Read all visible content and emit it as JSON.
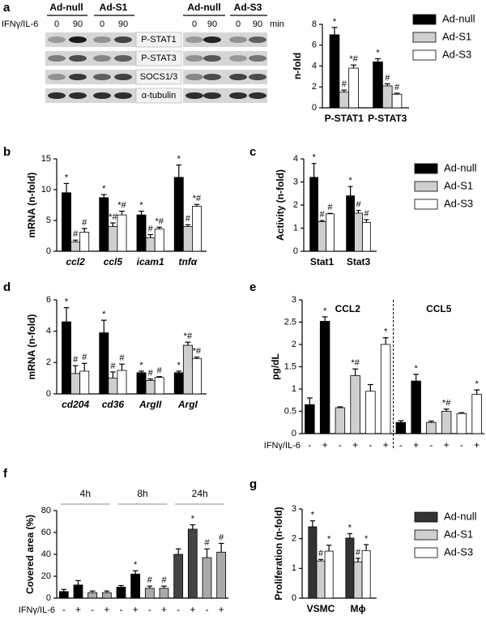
{
  "panel_labels": [
    "a",
    "b",
    "c",
    "d",
    "e",
    "f",
    "g"
  ],
  "blot": {
    "groups_left": [
      "Ad-null",
      "Ad-S1"
    ],
    "groups_right": [
      "Ad-null",
      "Ad-S3"
    ],
    "treatment": "IFNγ/IL-6",
    "time_labels_left": [
      "0",
      "90",
      "0",
      "90"
    ],
    "time_labels_right": [
      "0",
      "90",
      "0",
      "90"
    ],
    "unit": "min",
    "rows": [
      "P-STAT1",
      "P-STAT3",
      "SOCS1/3",
      "α-tubulin"
    ]
  },
  "chart_data": [
    {
      "type": "bar",
      "y_label": "n-fold",
      "categories": [
        "P-STAT1",
        "P-STAT3"
      ],
      "ylim": [
        0,
        8
      ],
      "yticks": [
        0,
        2,
        4,
        6,
        8
      ],
      "series": [
        {
          "name": "Ad-null",
          "color": "#000000",
          "values": [
            7.0,
            4.4
          ],
          "errors": [
            0.7,
            0.3
          ],
          "annotations": [
            "*",
            "*"
          ]
        },
        {
          "name": "Ad-S1",
          "color": "#cfcfcf",
          "values": [
            1.5,
            2.1
          ],
          "errors": [
            0.2,
            0.2
          ],
          "annotations": [
            "#",
            "#"
          ]
        },
        {
          "name": "Ad-S3",
          "color": "#ffffff",
          "values": [
            3.8,
            1.3
          ],
          "errors": [
            0.3,
            0.1
          ],
          "annotations": [
            "*#",
            "#"
          ]
        }
      ]
    },
    {
      "type": "bar",
      "y_label": "mRNA (n-fold)",
      "categories": [
        "ccl2",
        "ccl5",
        "icam1",
        "tnfα"
      ],
      "ylim": [
        0,
        15
      ],
      "yticks": [
        0,
        5,
        10,
        15
      ],
      "series": [
        {
          "name": "Ad-null",
          "color": "#000000",
          "values": [
            9.5,
            8.7,
            5.9,
            12.0
          ],
          "errors": [
            1.5,
            0.5,
            0.6,
            2.0
          ],
          "annotations": [
            "*",
            "*",
            "*",
            "*"
          ]
        },
        {
          "name": "Ad-S1",
          "color": "#cfcfcf",
          "values": [
            1.5,
            4.0,
            2.2,
            4.0
          ],
          "errors": [
            0.3,
            0.6,
            0.5,
            0.3
          ],
          "annotations": [
            "#",
            "*#",
            "#",
            "#"
          ]
        },
        {
          "name": "Ad-S3",
          "color": "#ffffff",
          "values": [
            3.1,
            5.9,
            3.6,
            7.3
          ],
          "errors": [
            0.6,
            0.6,
            0.3,
            0.3
          ],
          "annotations": [
            "#",
            "*#",
            "*#",
            "*#"
          ]
        }
      ]
    },
    {
      "type": "bar",
      "y_label": "Activity (n-fold)",
      "categories": [
        "Stat1",
        "Stat3"
      ],
      "ylim": [
        0,
        4
      ],
      "yticks": [
        0,
        1,
        2,
        3,
        4
      ],
      "series": [
        {
          "name": "Ad-null",
          "color": "#000000",
          "values": [
            3.2,
            2.4
          ],
          "errors": [
            0.6,
            0.4
          ],
          "annotations": [
            "*",
            "*"
          ]
        },
        {
          "name": "Ad-S1",
          "color": "#cfcfcf",
          "values": [
            1.28,
            1.65
          ],
          "errors": [
            0.05,
            0.12
          ],
          "annotations": [
            "#",
            "#"
          ]
        },
        {
          "name": "Ad-S3",
          "color": "#ffffff",
          "values": [
            1.62,
            1.25
          ],
          "errors": [
            0.02,
            0.12
          ],
          "annotations": [
            "#",
            "#"
          ]
        }
      ]
    },
    {
      "type": "bar",
      "y_label": "mRNA (n-fold)",
      "categories": [
        "cd204",
        "cd36",
        "ArgII",
        "ArgI"
      ],
      "ylim": [
        0,
        6
      ],
      "yticks": [
        0,
        2,
        4,
        6
      ],
      "series": [
        {
          "name": "Ad-null",
          "color": "#000000",
          "values": [
            4.6,
            3.9,
            1.35,
            1.35
          ],
          "errors": [
            0.9,
            0.8,
            0.1,
            0.1
          ],
          "annotations": [
            "*",
            "*",
            "*",
            "*"
          ]
        },
        {
          "name": "Ad-S1",
          "color": "#cfcfcf",
          "values": [
            1.3,
            1.0,
            0.85,
            3.1
          ],
          "errors": [
            0.5,
            0.4,
            0.1,
            0.2
          ],
          "annotations": [
            "#",
            "#",
            "#",
            "*#"
          ]
        },
        {
          "name": "Ad-S3",
          "color": "#ffffff",
          "values": [
            1.45,
            1.5,
            1.05,
            2.25
          ],
          "errors": [
            0.5,
            0.4,
            0.05,
            0.1
          ],
          "annotations": [
            "#",
            "#",
            "#",
            "*#"
          ]
        }
      ]
    },
    {
      "type": "bar",
      "y_label": "pg/dL",
      "x_row_label": "IFNγ/IL-6",
      "group_labels": [
        "CCL2",
        "CCL5"
      ],
      "categories": [
        "-",
        "+",
        "-",
        "+",
        "-",
        "+",
        "-",
        "+",
        "-",
        "+",
        "-",
        "+"
      ],
      "values": [
        0.65,
        2.52,
        0.58,
        1.3,
        0.95,
        2.0,
        0.25,
        1.18,
        0.25,
        0.5,
        0.45,
        0.88
      ],
      "errors": [
        0.15,
        0.1,
        0.02,
        0.15,
        0.15,
        0.15,
        0.04,
        0.15,
        0.03,
        0.05,
        0.02,
        0.1
      ],
      "colors": [
        "#000000",
        "#000000",
        "#cfcfcf",
        "#cfcfcf",
        "#ffffff",
        "#ffffff",
        "#000000",
        "#000000",
        "#cfcfcf",
        "#cfcfcf",
        "#ffffff",
        "#ffffff"
      ],
      "annotations": [
        null,
        "*",
        null,
        "*#",
        null,
        "*",
        null,
        "*",
        null,
        "*#",
        null,
        "*"
      ],
      "ylim": [
        0,
        3
      ],
      "yticks": [
        0,
        0.5,
        1,
        1.5,
        2,
        2.5,
        3
      ]
    },
    {
      "type": "bar",
      "y_label": "Covered area (%)",
      "x_row_label": "IFNγ/IL-6",
      "group_labels": [
        "4h",
        "8h",
        "24h"
      ],
      "categories": [
        "-",
        "+",
        "-",
        "+",
        "-",
        "+",
        "-",
        "+",
        "-",
        "+",
        "-",
        "+"
      ],
      "values": [
        6,
        12,
        5,
        5,
        10,
        22,
        9,
        9,
        40,
        63,
        37,
        42
      ],
      "errors": [
        2,
        4,
        1.5,
        1.5,
        1.5,
        3,
        2,
        2,
        5,
        4,
        8,
        8
      ],
      "colors": [
        "#000000",
        "#000000",
        "#aaaaaa",
        "#aaaaaa",
        "#000000",
        "#000000",
        "#aaaaaa",
        "#aaaaaa",
        "#444444",
        "#444444",
        "#aaaaaa",
        "#aaaaaa"
      ],
      "annotations": [
        null,
        null,
        null,
        null,
        null,
        "*",
        "#",
        "#",
        null,
        "*",
        "#",
        "#"
      ],
      "ylim": [
        0,
        80
      ],
      "yticks": [
        0,
        20,
        40,
        60,
        80
      ]
    },
    {
      "type": "bar",
      "y_label": "Proliferation (n-fold)",
      "categories": [
        "VSMC",
        "Mϕ"
      ],
      "ylim": [
        0,
        3
      ],
      "yticks": [
        0,
        1,
        2,
        3
      ],
      "series": [
        {
          "name": "Ad-null",
          "color": "#333333",
          "values": [
            2.4,
            2.02
          ],
          "errors": [
            0.2,
            0.15
          ],
          "annotations": [
            "*",
            "*"
          ]
        },
        {
          "name": "Ad-S1",
          "color": "#cfcfcf",
          "values": [
            1.25,
            1.22
          ],
          "errors": [
            0.05,
            0.12
          ],
          "annotations": [
            "#",
            "#"
          ]
        },
        {
          "name": "Ad-S3",
          "color": "#ffffff",
          "values": [
            1.58,
            1.6
          ],
          "errors": [
            0.2,
            0.2
          ],
          "annotations": [
            "*",
            "*"
          ]
        }
      ]
    }
  ]
}
